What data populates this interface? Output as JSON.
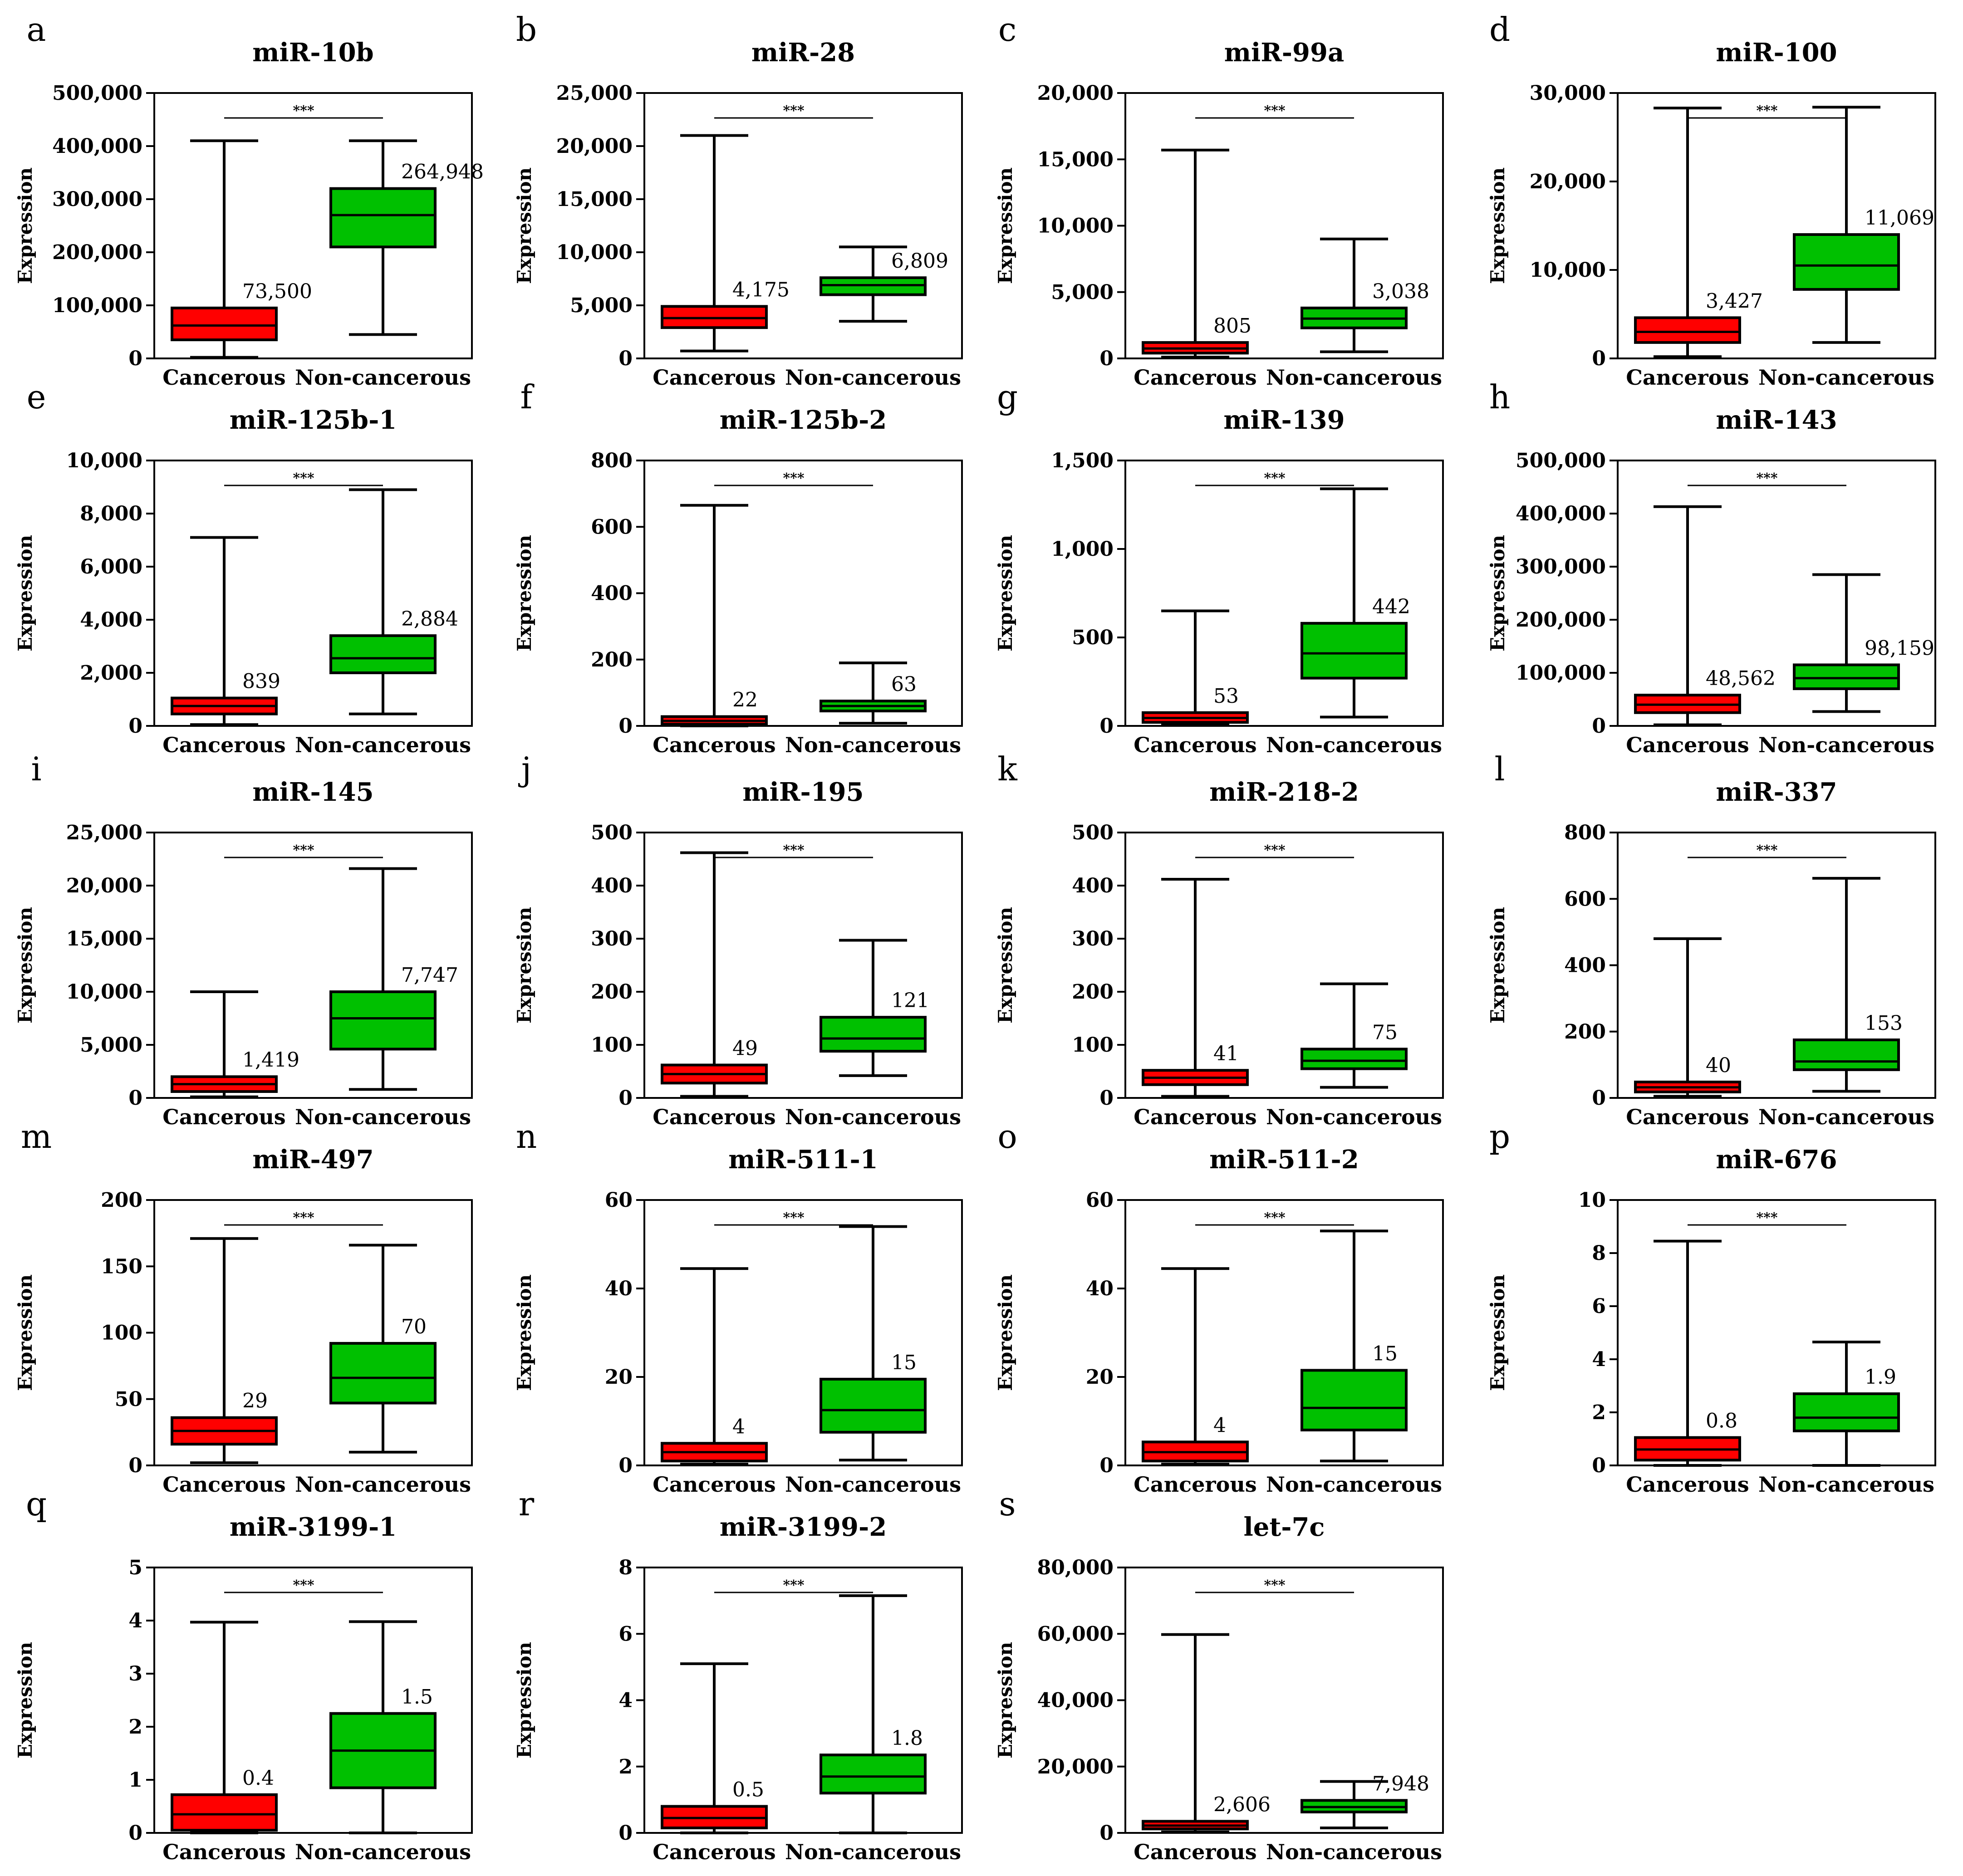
{
  "figure": {
    "ylabel": "Expression",
    "categories": [
      "Cancerous",
      "Non-cancerous"
    ],
    "significance": "***"
  },
  "colors": {
    "cancerous": "#ff0000",
    "non_cancerous": "#00c000",
    "stroke": "#000000",
    "background": "#ffffff"
  },
  "chart_data": [
    {
      "type": "box",
      "letter": "a",
      "title": "miR-10b",
      "ylim": [
        0,
        500000
      ],
      "yticks": [
        0,
        100000,
        200000,
        300000,
        400000,
        500000
      ],
      "ytick_labels": [
        "0",
        "100,000",
        "200,000",
        "300,000",
        "400,000",
        "500,000"
      ],
      "categories": [
        "Cancerous",
        "Non-cancerous"
      ],
      "ylabel": "Expression",
      "significance": "***",
      "boxes": [
        {
          "name": "Cancerous",
          "min": 2000,
          "q1": 35000,
          "median": 62000,
          "q3": 95000,
          "max": 410000,
          "label": "73,500"
        },
        {
          "name": "Non-cancerous",
          "min": 45000,
          "q1": 210000,
          "median": 270000,
          "q3": 320000,
          "max": 410000,
          "label": "264,948"
        }
      ]
    },
    {
      "type": "box",
      "letter": "b",
      "title": "miR-28",
      "ylim": [
        0,
        25000
      ],
      "yticks": [
        0,
        5000,
        10000,
        15000,
        20000,
        25000
      ],
      "ytick_labels": [
        "0",
        "5,000",
        "10,000",
        "15,000",
        "20,000",
        "25,000"
      ],
      "categories": [
        "Cancerous",
        "Non-cancerous"
      ],
      "ylabel": "Expression",
      "significance": "***",
      "boxes": [
        {
          "name": "Cancerous",
          "min": 700,
          "q1": 2900,
          "median": 3800,
          "q3": 4900,
          "max": 21000,
          "label": "4,175"
        },
        {
          "name": "Non-cancerous",
          "min": 3500,
          "q1": 6000,
          "median": 6900,
          "q3": 7600,
          "max": 10500,
          "label": "6,809"
        }
      ]
    },
    {
      "type": "box",
      "letter": "c",
      "title": "miR-99a",
      "ylim": [
        0,
        20000
      ],
      "yticks": [
        0,
        5000,
        10000,
        15000,
        20000
      ],
      "ytick_labels": [
        "0",
        "5,000",
        "10,000",
        "15,000",
        "20,000"
      ],
      "categories": [
        "Cancerous",
        "Non-cancerous"
      ],
      "ylabel": "Expression",
      "significance": "***",
      "boxes": [
        {
          "name": "Cancerous",
          "min": 100,
          "q1": 400,
          "median": 750,
          "q3": 1200,
          "max": 15700,
          "label": "805"
        },
        {
          "name": "Non-cancerous",
          "min": 500,
          "q1": 2300,
          "median": 3000,
          "q3": 3800,
          "max": 9000,
          "label": "3,038"
        }
      ]
    },
    {
      "type": "box",
      "letter": "d",
      "title": "miR-100",
      "ylim": [
        0,
        30000
      ],
      "yticks": [
        0,
        10000,
        20000,
        30000
      ],
      "ytick_labels": [
        "0",
        "10,000",
        "20,000",
        "30,000"
      ],
      "categories": [
        "Cancerous",
        "Non-cancerous"
      ],
      "ylabel": "Expression",
      "significance": "***",
      "boxes": [
        {
          "name": "Cancerous",
          "min": 200,
          "q1": 1800,
          "median": 3000,
          "q3": 4600,
          "max": 28300,
          "label": "3,427"
        },
        {
          "name": "Non-cancerous",
          "min": 1800,
          "q1": 7800,
          "median": 10500,
          "q3": 14000,
          "max": 28400,
          "label": "11,069"
        }
      ]
    },
    {
      "type": "box",
      "letter": "e",
      "title": "miR-125b-1",
      "ylim": [
        0,
        10000
      ],
      "yticks": [
        0,
        2000,
        4000,
        6000,
        8000,
        10000
      ],
      "ytick_labels": [
        "0",
        "2,000",
        "4,000",
        "6,000",
        "8,000",
        "10,000"
      ],
      "categories": [
        "Cancerous",
        "Non-cancerous"
      ],
      "ylabel": "Expression",
      "significance": "***",
      "boxes": [
        {
          "name": "Cancerous",
          "min": 50,
          "q1": 450,
          "median": 750,
          "q3": 1050,
          "max": 7100,
          "label": "839"
        },
        {
          "name": "Non-cancerous",
          "min": 450,
          "q1": 2000,
          "median": 2550,
          "q3": 3400,
          "max": 8900,
          "label": "2,884"
        }
      ]
    },
    {
      "type": "box",
      "letter": "f",
      "title": "miR-125b-2",
      "ylim": [
        0,
        800
      ],
      "yticks": [
        0,
        200,
        400,
        600,
        800
      ],
      "ytick_labels": [
        "0",
        "200",
        "400",
        "600",
        "800"
      ],
      "categories": [
        "Cancerous",
        "Non-cancerous"
      ],
      "ylabel": "Expression",
      "significance": "***",
      "boxes": [
        {
          "name": "Cancerous",
          "min": 0,
          "q1": 5,
          "median": 15,
          "q3": 28,
          "max": 665,
          "label": "22"
        },
        {
          "name": "Non-cancerous",
          "min": 8,
          "q1": 45,
          "median": 60,
          "q3": 75,
          "max": 190,
          "label": "63"
        }
      ]
    },
    {
      "type": "box",
      "letter": "g",
      "title": "miR-139",
      "ylim": [
        0,
        1500
      ],
      "yticks": [
        0,
        500,
        1000,
        1500
      ],
      "ytick_labels": [
        "0",
        "500",
        "1,000",
        "1,500"
      ],
      "categories": [
        "Cancerous",
        "Non-cancerous"
      ],
      "ylabel": "Expression",
      "significance": "***",
      "boxes": [
        {
          "name": "Cancerous",
          "min": 5,
          "q1": 20,
          "median": 45,
          "q3": 75,
          "max": 650,
          "label": "53"
        },
        {
          "name": "Non-cancerous",
          "min": 50,
          "q1": 270,
          "median": 410,
          "q3": 580,
          "max": 1340,
          "label": "442"
        }
      ]
    },
    {
      "type": "box",
      "letter": "h",
      "title": "miR-143",
      "ylim": [
        0,
        500000
      ],
      "yticks": [
        0,
        100000,
        200000,
        300000,
        400000,
        500000
      ],
      "ytick_labels": [
        "0",
        "100,000",
        "200,000",
        "300,000",
        "400,000",
        "500,000"
      ],
      "categories": [
        "Cancerous",
        "Non-cancerous"
      ],
      "ylabel": "Expression",
      "significance": "***",
      "boxes": [
        {
          "name": "Cancerous",
          "min": 2000,
          "q1": 25000,
          "median": 40000,
          "q3": 58000,
          "max": 413000,
          "label": "48,562"
        },
        {
          "name": "Non-cancerous",
          "min": 27000,
          "q1": 70000,
          "median": 90000,
          "q3": 115000,
          "max": 285000,
          "label": "98,159"
        }
      ]
    },
    {
      "type": "box",
      "letter": "i",
      "title": "miR-145",
      "ylim": [
        0,
        25000
      ],
      "yticks": [
        0,
        5000,
        10000,
        15000,
        20000,
        25000
      ],
      "ytick_labels": [
        "0",
        "5,000",
        "10,000",
        "15,000",
        "20,000",
        "25,000"
      ],
      "categories": [
        "Cancerous",
        "Non-cancerous"
      ],
      "ylabel": "Expression",
      "significance": "***",
      "boxes": [
        {
          "name": "Cancerous",
          "min": 100,
          "q1": 600,
          "median": 1300,
          "q3": 2000,
          "max": 10000,
          "label": "1,419"
        },
        {
          "name": "Non-cancerous",
          "min": 800,
          "q1": 4600,
          "median": 7500,
          "q3": 10000,
          "max": 21600,
          "label": "7,747"
        }
      ]
    },
    {
      "type": "box",
      "letter": "j",
      "title": "miR-195",
      "ylim": [
        0,
        500
      ],
      "yticks": [
        0,
        100,
        200,
        300,
        400,
        500
      ],
      "ytick_labels": [
        "0",
        "100",
        "200",
        "300",
        "400",
        "500"
      ],
      "categories": [
        "Cancerous",
        "Non-cancerous"
      ],
      "ylabel": "Expression",
      "significance": "***",
      "boxes": [
        {
          "name": "Cancerous",
          "min": 3,
          "q1": 28,
          "median": 45,
          "q3": 62,
          "max": 462,
          "label": "49"
        },
        {
          "name": "Non-cancerous",
          "min": 42,
          "q1": 88,
          "median": 112,
          "q3": 152,
          "max": 297,
          "label": "121"
        }
      ]
    },
    {
      "type": "box",
      "letter": "k",
      "title": "miR-218-2",
      "ylim": [
        0,
        500
      ],
      "yticks": [
        0,
        100,
        200,
        300,
        400,
        500
      ],
      "ytick_labels": [
        "0",
        "100",
        "200",
        "300",
        "400",
        "500"
      ],
      "categories": [
        "Cancerous",
        "Non-cancerous"
      ],
      "ylabel": "Expression",
      "significance": "***",
      "boxes": [
        {
          "name": "Cancerous",
          "min": 3,
          "q1": 25,
          "median": 38,
          "q3": 52,
          "max": 412,
          "label": "41"
        },
        {
          "name": "Non-cancerous",
          "min": 20,
          "q1": 55,
          "median": 70,
          "q3": 92,
          "max": 215,
          "label": "75"
        }
      ]
    },
    {
      "type": "box",
      "letter": "l",
      "title": "miR-337",
      "ylim": [
        0,
        800
      ],
      "yticks": [
        0,
        200,
        400,
        600,
        800
      ],
      "ytick_labels": [
        "0",
        "200",
        "400",
        "600",
        "800"
      ],
      "categories": [
        "Cancerous",
        "Non-cancerous"
      ],
      "ylabel": "Expression",
      "significance": "***",
      "boxes": [
        {
          "name": "Cancerous",
          "min": 5,
          "q1": 18,
          "median": 32,
          "q3": 48,
          "max": 480,
          "label": "40"
        },
        {
          "name": "Non-cancerous",
          "min": 20,
          "q1": 85,
          "median": 110,
          "q3": 175,
          "max": 662,
          "label": "153"
        }
      ]
    },
    {
      "type": "box",
      "letter": "m",
      "title": "miR-497",
      "ylim": [
        0,
        200
      ],
      "yticks": [
        0,
        50,
        100,
        150,
        200
      ],
      "ytick_labels": [
        "0",
        "50",
        "100",
        "150",
        "200"
      ],
      "categories": [
        "Cancerous",
        "Non-cancerous"
      ],
      "ylabel": "Expression",
      "significance": "***",
      "boxes": [
        {
          "name": "Cancerous",
          "min": 2,
          "q1": 16,
          "median": 26,
          "q3": 36,
          "max": 171,
          "label": "29"
        },
        {
          "name": "Non-cancerous",
          "min": 10,
          "q1": 47,
          "median": 66,
          "q3": 92,
          "max": 166,
          "label": "70"
        }
      ]
    },
    {
      "type": "box",
      "letter": "n",
      "title": "miR-511-1",
      "ylim": [
        0,
        60
      ],
      "yticks": [
        0,
        20,
        40,
        60
      ],
      "ytick_labels": [
        "0",
        "20",
        "40",
        "60"
      ],
      "categories": [
        "Cancerous",
        "Non-cancerous"
      ],
      "ylabel": "Expression",
      "significance": "***",
      "boxes": [
        {
          "name": "Cancerous",
          "min": 0.3,
          "q1": 1,
          "median": 3,
          "q3": 5,
          "max": 44.5,
          "label": "4"
        },
        {
          "name": "Non-cancerous",
          "min": 1.2,
          "q1": 7.5,
          "median": 12.5,
          "q3": 19.5,
          "max": 54,
          "label": "15"
        }
      ]
    },
    {
      "type": "box",
      "letter": "o",
      "title": "miR-511-2",
      "ylim": [
        0,
        60
      ],
      "yticks": [
        0,
        20,
        40,
        60
      ],
      "ytick_labels": [
        "0",
        "20",
        "40",
        "60"
      ],
      "categories": [
        "Cancerous",
        "Non-cancerous"
      ],
      "ylabel": "Expression",
      "significance": "***",
      "boxes": [
        {
          "name": "Cancerous",
          "min": 0.3,
          "q1": 1,
          "median": 3,
          "q3": 5.3,
          "max": 44.5,
          "label": "4"
        },
        {
          "name": "Non-cancerous",
          "min": 1,
          "q1": 8,
          "median": 13,
          "q3": 21.5,
          "max": 53,
          "label": "15"
        }
      ]
    },
    {
      "type": "box",
      "letter": "p",
      "title": "miR-676",
      "ylim": [
        0,
        10
      ],
      "yticks": [
        0,
        2,
        4,
        6,
        8,
        10
      ],
      "ytick_labels": [
        "0",
        "2",
        "4",
        "6",
        "8",
        "10"
      ],
      "categories": [
        "Cancerous",
        "Non-cancerous"
      ],
      "ylabel": "Expression",
      "significance": "***",
      "boxes": [
        {
          "name": "Cancerous",
          "min": 0,
          "q1": 0.2,
          "median": 0.6,
          "q3": 1.05,
          "max": 8.45,
          "label": "0.8"
        },
        {
          "name": "Non-cancerous",
          "min": 0,
          "q1": 1.3,
          "median": 1.8,
          "q3": 2.7,
          "max": 4.65,
          "label": "1.9"
        }
      ]
    },
    {
      "type": "box",
      "letter": "q",
      "title": "miR-3199-1",
      "ylim": [
        0,
        5
      ],
      "yticks": [
        0,
        1,
        2,
        3,
        4,
        5
      ],
      "ytick_labels": [
        "0",
        "1",
        "2",
        "3",
        "4",
        "5"
      ],
      "categories": [
        "Cancerous",
        "Non-cancerous"
      ],
      "ylabel": "Expression",
      "significance": "***",
      "boxes": [
        {
          "name": "Cancerous",
          "min": 0,
          "q1": 0.05,
          "median": 0.35,
          "q3": 0.72,
          "max": 3.97,
          "label": "0.4"
        },
        {
          "name": "Non-cancerous",
          "min": 0,
          "q1": 0.85,
          "median": 1.55,
          "q3": 2.25,
          "max": 3.98,
          "label": "1.5"
        }
      ]
    },
    {
      "type": "box",
      "letter": "r",
      "title": "miR-3199-2",
      "ylim": [
        0,
        8
      ],
      "yticks": [
        0,
        2,
        4,
        6,
        8
      ],
      "ytick_labels": [
        "0",
        "2",
        "4",
        "6",
        "8"
      ],
      "categories": [
        "Cancerous",
        "Non-cancerous"
      ],
      "ylabel": "Expression",
      "significance": "***",
      "boxes": [
        {
          "name": "Cancerous",
          "min": 0,
          "q1": 0.15,
          "median": 0.45,
          "q3": 0.8,
          "max": 5.1,
          "label": "0.5"
        },
        {
          "name": "Non-cancerous",
          "min": 0,
          "q1": 1.2,
          "median": 1.7,
          "q3": 2.35,
          "max": 7.15,
          "label": "1.8"
        }
      ]
    },
    {
      "type": "box",
      "letter": "s",
      "title": "let-7c",
      "ylim": [
        0,
        80000
      ],
      "yticks": [
        0,
        20000,
        40000,
        60000,
        80000
      ],
      "ytick_labels": [
        "0",
        "20,000",
        "40,000",
        "60,000",
        "80,000"
      ],
      "categories": [
        "Cancerous",
        "Non-cancerous"
      ],
      "ylabel": "Expression",
      "significance": "***",
      "boxes": [
        {
          "name": "Cancerous",
          "min": 300,
          "q1": 1200,
          "median": 2200,
          "q3": 3500,
          "max": 59800,
          "label": "2,606"
        },
        {
          "name": "Non-cancerous",
          "min": 1500,
          "q1": 6300,
          "median": 7800,
          "q3": 9800,
          "max": 15500,
          "label": "7,948"
        }
      ]
    }
  ]
}
